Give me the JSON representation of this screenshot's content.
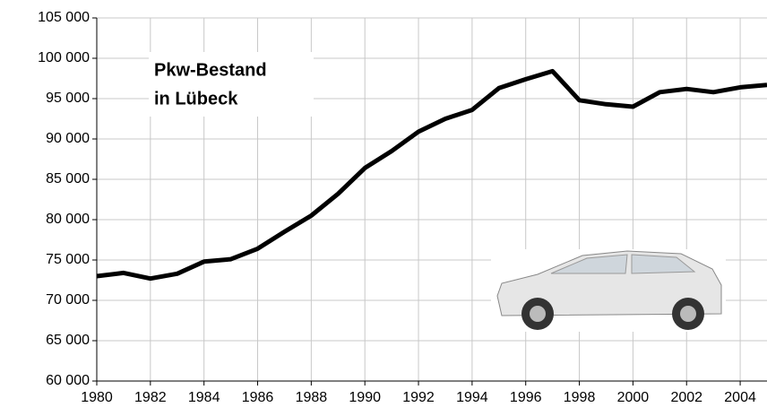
{
  "chart_data": {
    "type": "line",
    "title_lines": [
      "Pkw-Bestand",
      "in Lübeck"
    ],
    "x": [
      1980,
      1981,
      1982,
      1983,
      1984,
      1985,
      1986,
      1987,
      1988,
      1989,
      1990,
      1991,
      1992,
      1993,
      1994,
      1995,
      1996,
      1997,
      1998,
      1999,
      2000,
      2001,
      2002,
      2003,
      2004,
      2005
    ],
    "series": [
      {
        "color": "#000000",
        "values": [
          73000,
          73400,
          72700,
          73300,
          74800,
          75100,
          76400,
          78500,
          80500,
          83200,
          86400,
          88500,
          90900,
          92500,
          93600,
          96300,
          97400,
          98400,
          94800,
          94300,
          94000,
          95800,
          96200,
          95800,
          96400,
          96700
        ]
      }
    ],
    "xlim": [
      1980,
      2005
    ],
    "xticks": [
      1980,
      1982,
      1984,
      1986,
      1988,
      1990,
      1992,
      1994,
      1996,
      1998,
      2000,
      2002,
      2004
    ],
    "ylim": [
      60000,
      105000
    ],
    "yticks": [
      {
        "value": 60000,
        "label": "60 000"
      },
      {
        "value": 65000,
        "label": "65 000"
      },
      {
        "value": 70000,
        "label": "70 000"
      },
      {
        "value": 75000,
        "label": "75 000"
      },
      {
        "value": 80000,
        "label": "80 000"
      },
      {
        "value": 85000,
        "label": "85 000"
      },
      {
        "value": 90000,
        "label": "90 000"
      },
      {
        "value": 95000,
        "label": "95 000"
      },
      {
        "value": 100000,
        "label": "100 000"
      },
      {
        "value": 105000,
        "label": "105 000"
      }
    ],
    "grid": true
  }
}
